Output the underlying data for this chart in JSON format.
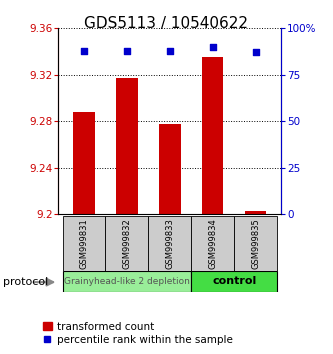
{
  "title": "GDS5113 / 10540622",
  "samples": [
    "GSM999831",
    "GSM999832",
    "GSM999833",
    "GSM999834",
    "GSM999835"
  ],
  "bar_values": [
    9.288,
    9.317,
    9.278,
    9.335,
    9.203
  ],
  "bar_base": 9.2,
  "percentile_values": [
    88,
    88,
    88,
    90,
    87
  ],
  "ylim_left": [
    9.2,
    9.36
  ],
  "ylim_right": [
    0,
    100
  ],
  "yticks_left": [
    9.2,
    9.24,
    9.28,
    9.32,
    9.36
  ],
  "yticks_right": [
    0,
    25,
    50,
    75,
    100
  ],
  "ytick_labels_right": [
    "0",
    "25",
    "50",
    "75",
    "100%"
  ],
  "bar_color": "#cc0000",
  "dot_color": "#0000cc",
  "group1_label": "Grainyhead-like 2 depletion",
  "group2_label": "control",
  "group1_color": "#99ee99",
  "group2_color": "#44dd44",
  "protocol_label": "protocol",
  "legend_bar_label": "transformed count",
  "legend_dot_label": "percentile rank within the sample",
  "bar_width": 0.5,
  "title_fontsize": 11,
  "tick_fontsize": 7.5,
  "sample_fontsize": 6,
  "proto_fontsize": 6.5,
  "legend_fontsize": 7.5
}
